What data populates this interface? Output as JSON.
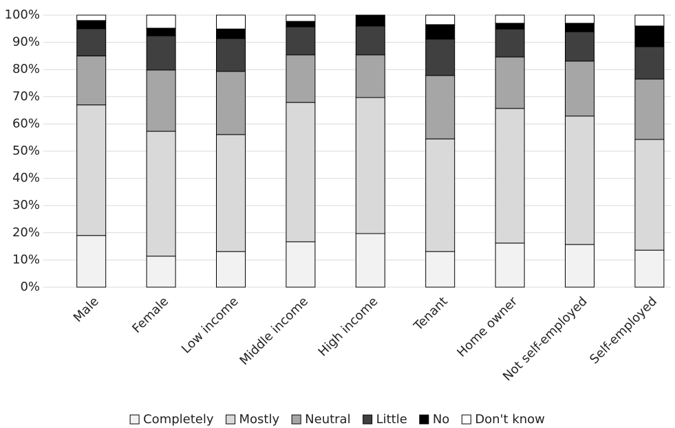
{
  "chart_data": {
    "type": "stacked_bar",
    "categories": [
      "Male",
      "Female",
      "Low income",
      "Middle income",
      "High income",
      "Tenant",
      "Home owner",
      "Not self-employed",
      "Self-employed"
    ],
    "series": [
      {
        "name": "Completely",
        "color": "#f2f2f2",
        "values": [
          19,
          11.4,
          13.1,
          16.7,
          19.7,
          13.1,
          16.2,
          15.7,
          13.6
        ]
      },
      {
        "name": "Mostly",
        "color": "#d9d9d9",
        "values": [
          48,
          45.9,
          43.0,
          51.2,
          50.0,
          41.4,
          49.5,
          47.2,
          40.7
        ]
      },
      {
        "name": "Neutral",
        "color": "#a6a6a6",
        "values": [
          18,
          22.5,
          23.2,
          17.5,
          15.7,
          23.3,
          18.9,
          20.2,
          22.2
        ]
      },
      {
        "name": "Little",
        "color": "#404040",
        "values": [
          10,
          12.6,
          12.1,
          10.3,
          10.6,
          13.4,
          10.3,
          10.8,
          11.9
        ]
      },
      {
        "name": "No",
        "color": "#000000",
        "values": [
          3,
          2.8,
          3.5,
          2.0,
          4.0,
          5.3,
          2.1,
          3.1,
          7.6
        ]
      },
      {
        "name": "Don't know",
        "color": "#ffffff",
        "values": [
          2,
          4.8,
          5.1,
          2.3,
          0,
          3.5,
          3.0,
          3.0,
          4.0
        ]
      }
    ],
    "ylim": [
      0,
      100
    ],
    "yticks": [
      {
        "value": 0,
        "label": "0%"
      },
      {
        "value": 10,
        "label": "10%"
      },
      {
        "value": 20,
        "label": "20%"
      },
      {
        "value": 30,
        "label": "30%"
      },
      {
        "value": 40,
        "label": "40%"
      },
      {
        "value": 50,
        "label": "50%"
      },
      {
        "value": 60,
        "label": "60%"
      },
      {
        "value": 70,
        "label": "70%"
      },
      {
        "value": 80,
        "label": "80%"
      },
      {
        "value": 90,
        "label": "90%"
      },
      {
        "value": 100,
        "label": "100%"
      }
    ],
    "grid": true,
    "legend": "bottom"
  }
}
